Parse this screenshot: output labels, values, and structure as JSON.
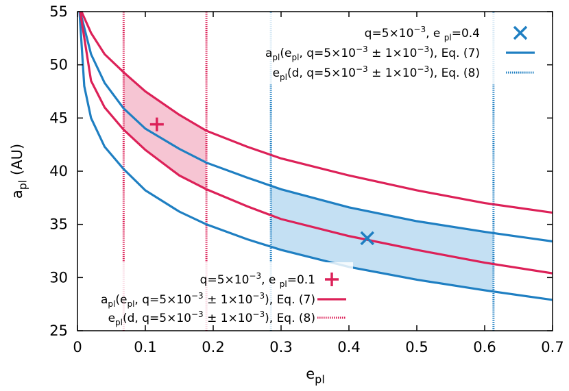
{
  "chart_data": {
    "type": "line",
    "xlim": [
      0,
      0.7
    ],
    "xticks": [
      0,
      0.1,
      0.2,
      0.3,
      0.4,
      0.5,
      0.6,
      0.7
    ],
    "ylim": [
      25,
      55
    ],
    "yticks": [
      25,
      30,
      35,
      40,
      45,
      50,
      55
    ],
    "xlabel": [
      {
        "text": "e"
      },
      {
        "sub": "pl"
      }
    ],
    "ylabel": [
      {
        "text": "a"
      },
      {
        "sub": "pl"
      },
      {
        "text": " (AU)"
      }
    ],
    "groups": [
      {
        "color": "#1f7fc2",
        "fill": "#c4e0f3",
        "marker": "x",
        "legend": "top-right",
        "point": {
          "x": 0.427,
          "y": 33.7
        },
        "point_label": [
          {
            "text": "q=5×10"
          },
          {
            "sup": "−3"
          },
          {
            "text": ", e "
          },
          {
            "sub": "pl"
          },
          {
            "text": "=0.4"
          }
        ],
        "curve_label": [
          {
            "text": "a"
          },
          {
            "sub": "pl"
          },
          {
            "text": "(e"
          },
          {
            "sub": "pl"
          },
          {
            "text": ", q=5×10"
          },
          {
            "sup": "−3"
          },
          {
            "text": " ± 1×10"
          },
          {
            "sup": "−3"
          },
          {
            "text": "), Eq. (7)"
          }
        ],
        "bound_label": [
          {
            "text": "e"
          },
          {
            "sub": "pl"
          },
          {
            "text": "(d, q=5×10"
          },
          {
            "sup": "−3"
          },
          {
            "text": " ± 1×10"
          },
          {
            "sup": "−3"
          },
          {
            "text": "), Eq. (8)"
          }
        ],
        "bounds": [
          0.285,
          0.613
        ],
        "curves": [
          {
            "x": [
              0.004,
              0.02,
              0.04,
              0.068,
              0.1,
              0.15,
              0.19,
              0.25,
              0.3,
              0.4,
              0.5,
              0.6,
              0.7
            ],
            "values": [
              55,
              51.0,
              48.3,
              45.9,
              44.0,
              42.1,
              40.8,
              39.4,
              38.3,
              36.6,
              35.3,
              34.3,
              33.4
            ]
          },
          {
            "x": [
              0.003,
              0.01,
              0.02,
              0.04,
              0.068,
              0.1,
              0.15,
              0.19,
              0.25,
              0.3,
              0.4,
              0.5,
              0.6,
              0.7
            ],
            "values": [
              55,
              48,
              45.0,
              42.3,
              40.2,
              38.2,
              36.2,
              35.0,
              33.6,
              32.6,
              31.0,
              29.8,
              28.8,
              27.9
            ]
          }
        ]
      },
      {
        "color": "#dc2158",
        "fill": "#f6c5d3",
        "marker": "+",
        "legend": "bottom-left",
        "point": {
          "x": 0.117,
          "y": 44.4
        },
        "point_label": [
          {
            "text": "q=5×10"
          },
          {
            "sup": "−3"
          },
          {
            "text": ", e "
          },
          {
            "sub": "pl"
          },
          {
            "text": "=0.1"
          }
        ],
        "curve_label": [
          {
            "text": "a"
          },
          {
            "sub": "pl"
          },
          {
            "text": "(e"
          },
          {
            "sub": "pl"
          },
          {
            "text": ", q=5×10"
          },
          {
            "sup": "−3"
          },
          {
            "text": " ± 1×10"
          },
          {
            "sup": "−3"
          },
          {
            "text": "), Eq. (7)"
          }
        ],
        "bound_label": [
          {
            "text": "e"
          },
          {
            "sub": "pl"
          },
          {
            "text": "(d, q=5×10"
          },
          {
            "sup": "−3"
          },
          {
            "text": " ± 1×10"
          },
          {
            "sup": "−3"
          },
          {
            "text": "), Eq. (8)"
          }
        ],
        "bounds": [
          0.068,
          0.19
        ],
        "curves": [
          {
            "x": [
              0.006,
              0.02,
              0.04,
              0.068,
              0.1,
              0.15,
              0.19,
              0.25,
              0.3,
              0.4,
              0.5,
              0.6,
              0.7
            ],
            "values": [
              55,
              53.0,
              51.0,
              49.3,
              47.5,
              45.3,
              43.8,
              42.3,
              41.2,
              39.6,
              38.2,
              37.0,
              36.1
            ]
          },
          {
            "x": [
              0.004,
              0.02,
              0.04,
              0.068,
              0.1,
              0.15,
              0.19,
              0.25,
              0.3,
              0.4,
              0.5,
              0.6,
              0.7
            ],
            "values": [
              55,
              48.5,
              46.0,
              43.9,
              42.0,
              39.6,
              38.3,
              36.7,
              35.5,
              33.9,
              32.6,
              31.4,
              30.4
            ]
          }
        ]
      }
    ]
  }
}
